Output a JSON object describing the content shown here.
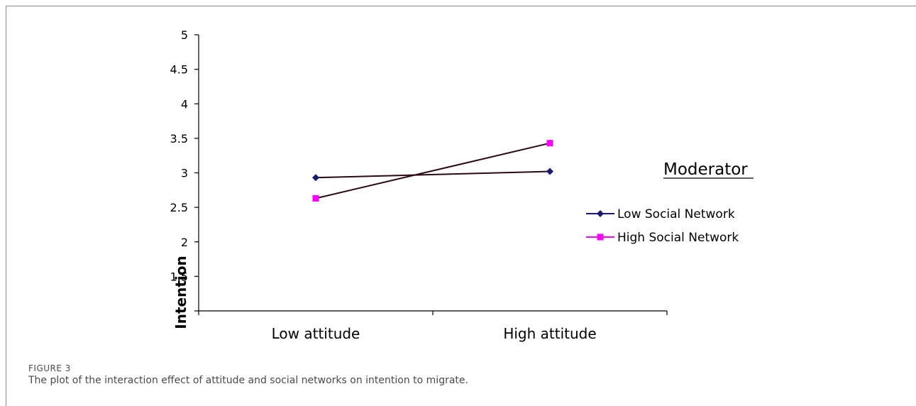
{
  "chart_data": {
    "type": "line",
    "categories": [
      "Low attitude",
      "High attitude"
    ],
    "ylabel": "Intention",
    "ylim": [
      1,
      5
    ],
    "yticks": [
      "1.5",
      "2",
      "2.5",
      "3",
      "3.5",
      "4",
      "4.5",
      "5"
    ],
    "legend": {
      "title": "Moderator",
      "position": "right"
    },
    "series": [
      {
        "name": "Low Social Network",
        "values": [
          2.93,
          3.02
        ],
        "color": "#1a1a6e",
        "marker": "diamond"
      },
      {
        "name": "High Social Network",
        "values": [
          2.63,
          3.43
        ],
        "color": "#ff00ff",
        "marker": "square"
      }
    ],
    "line_color": "#2a0a14",
    "grid": false
  },
  "caption": {
    "label": "FIGURE 3",
    "text": "The plot of the interaction effect of attitude and social networks on intention to migrate."
  }
}
